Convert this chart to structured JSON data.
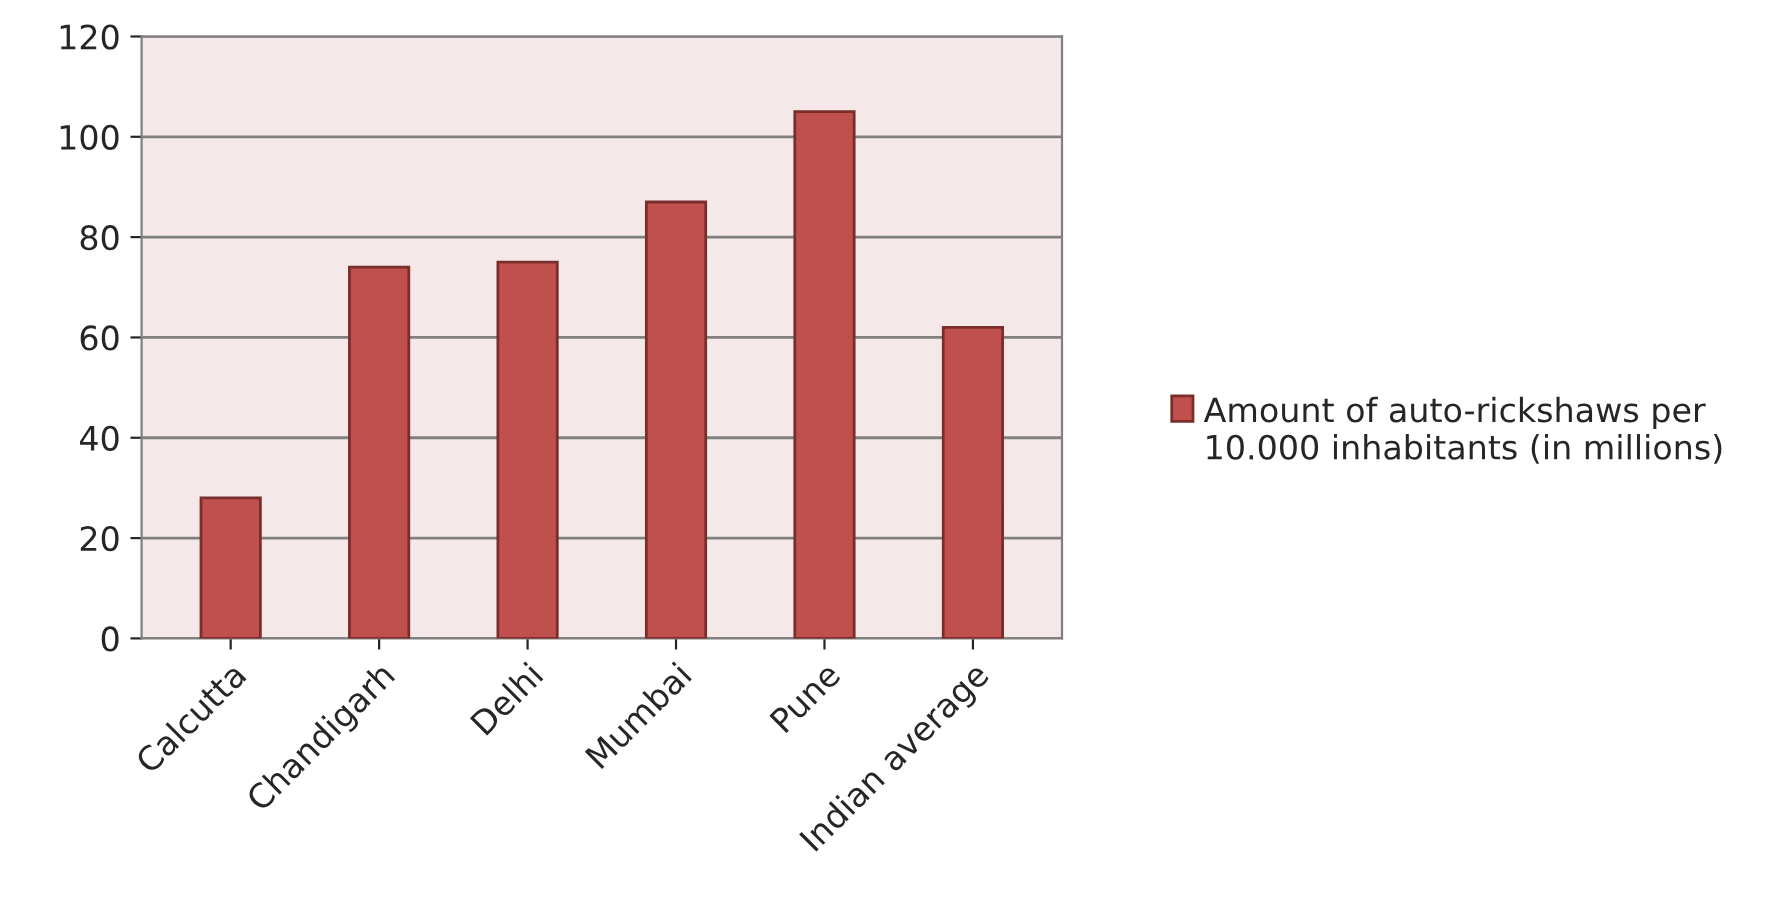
{
  "chart_data": {
    "type": "bar",
    "categories": [
      "Calcutta",
      "Chandigarh",
      "Delhi",
      "Mumbai",
      "Pune",
      "Indian average"
    ],
    "series": [
      {
        "name": "Amount of auto-rickshaws per 10.000 inhabitants (in millions)",
        "color": "#c0504d",
        "values": [
          28,
          74,
          75,
          87,
          105,
          62
        ]
      }
    ],
    "ylim": [
      0,
      120
    ],
    "yticks": [
      0,
      20,
      40,
      60,
      80,
      100,
      120
    ],
    "grid": "y",
    "legend": "right"
  }
}
